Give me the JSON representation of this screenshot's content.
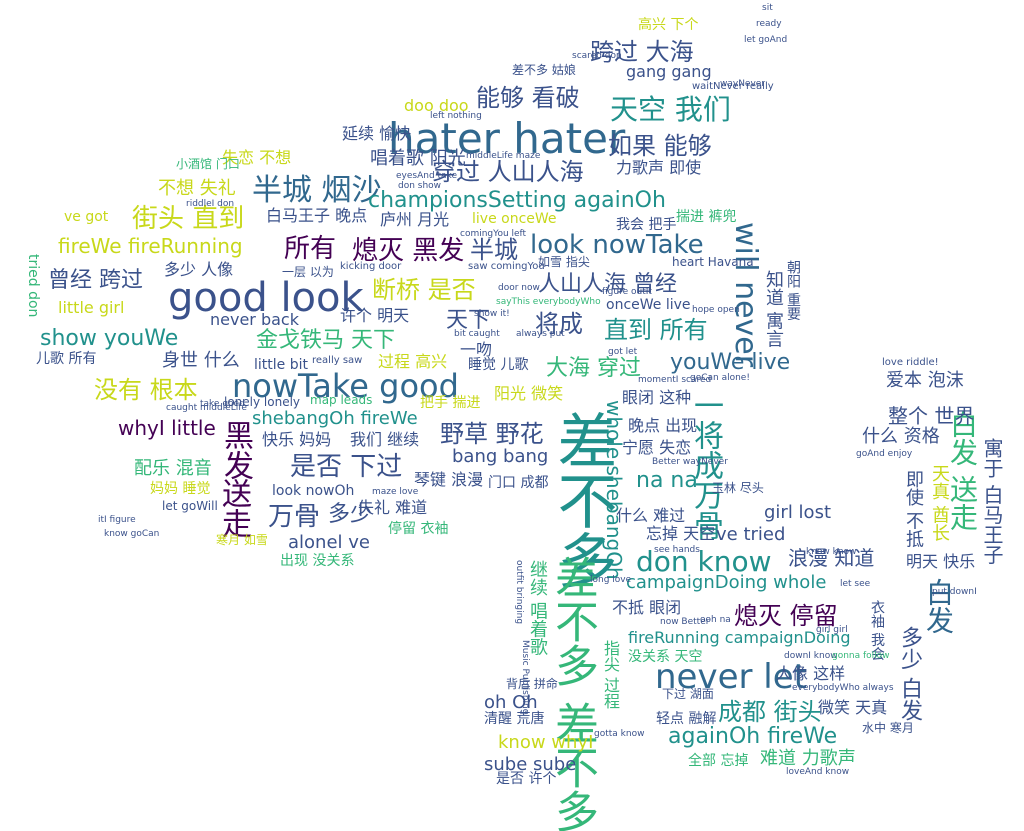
{
  "palette": {
    "dark_purple": "#440154",
    "indigo": "#3b528b",
    "blue": "#31688e",
    "teal": "#21918c",
    "green": "#35b779",
    "lime": "#90d743",
    "yellow": "#c8d81a",
    "navy": "#2c3e7f"
  },
  "words": [
    {
      "text": "差不多",
      "color": "#21918c"
    },
    {
      "text": "hater hater",
      "color": "#31688e"
    },
    {
      "text": "good look",
      "color": "#3b528b"
    },
    {
      "text": "nowTake good",
      "color": "#31688e"
    },
    {
      "text": "never let",
      "color": "#31688e"
    },
    {
      "text": "don know",
      "color": "#21918c"
    },
    {
      "text": "差不多 差不多",
      "color": "#35b779"
    },
    {
      "text": "天空 我们",
      "color": "#21918c"
    },
    {
      "text": "半城 烟沙",
      "color": "#31688e"
    },
    {
      "text": "look nowTake",
      "color": "#31688e"
    },
    {
      "text": "穿过 人山人海",
      "color": "#3b528b"
    },
    {
      "text": "championsSetting againOh",
      "color": "#21918c"
    },
    {
      "text": "熄灭 黑发",
      "color": "#440154"
    },
    {
      "text": "所有",
      "color": "#440154"
    },
    {
      "text": "街头 直到",
      "color": "#c8d81a"
    },
    {
      "text": "如果 能够",
      "color": "#3b528b"
    },
    {
      "text": "能够 看破",
      "color": "#3b528b"
    },
    {
      "text": "跨过 大海",
      "color": "#3b528b"
    },
    {
      "text": "gang gang",
      "color": "#3b528b"
    },
    {
      "text": "fireWe fireRunning",
      "color": "#c8d81a"
    },
    {
      "text": "曾经 跨过",
      "color": "#3b528b"
    },
    {
      "text": "断桥 是否",
      "color": "#c8d81a"
    },
    {
      "text": "半城",
      "color": "#3b528b"
    },
    {
      "text": "人山人海 曾经",
      "color": "#3b528b"
    },
    {
      "text": "show youWe",
      "color": "#21918c"
    },
    {
      "text": "金戈铁马 天下",
      "color": "#35b779"
    },
    {
      "text": "没有 根本",
      "color": "#c8d81a"
    },
    {
      "text": "将成",
      "color": "#3b528b"
    },
    {
      "text": "天下",
      "color": "#3b528b"
    },
    {
      "text": "直到 所有",
      "color": "#21918c"
    },
    {
      "text": "youWe live",
      "color": "#31688e"
    },
    {
      "text": "will never",
      "color": "#31688e"
    },
    {
      "text": "是否 下过",
      "color": "#3b528b"
    },
    {
      "text": "万骨",
      "color": "#3b528b"
    },
    {
      "text": "多少",
      "color": "#3b528b"
    },
    {
      "text": "whyI little",
      "color": "#440154"
    },
    {
      "text": "shebangOh fireWe",
      "color": "#21918c"
    },
    {
      "text": "野草 野花",
      "color": "#3b528b"
    },
    {
      "text": "bang bang",
      "color": "#3b528b"
    },
    {
      "text": "黑发",
      "color": "#440154"
    },
    {
      "text": "送走",
      "color": "#440154"
    },
    {
      "text": "大海 穿过",
      "color": "#35b779"
    },
    {
      "text": "一将成万骨",
      "color": "#21918c"
    },
    {
      "text": "na na",
      "color": "#21918c"
    },
    {
      "text": "熄灭 停留",
      "color": "#440154"
    },
    {
      "text": "白发 送走",
      "color": "#35b779"
    },
    {
      "text": "白发",
      "color": "#31688e"
    },
    {
      "text": "成都 街头",
      "color": "#21918c"
    },
    {
      "text": "againOh fireWe",
      "color": "#21918c"
    },
    {
      "text": "campaignDoing whole",
      "color": "#21918c"
    },
    {
      "text": "fireRunning campaignDoing",
      "color": "#21918c"
    },
    {
      "text": "浪漫 知道",
      "color": "#3b528b"
    },
    {
      "text": "whole shebangOh",
      "color": "#21918c"
    },
    {
      "text": "ve tried",
      "color": "#3b528b"
    },
    {
      "text": "girl lost",
      "color": "#3b528b"
    },
    {
      "text": "alonel ve",
      "color": "#3b528b"
    },
    {
      "text": "oh Oh",
      "color": "#3b528b"
    },
    {
      "text": "know whyI",
      "color": "#c8d81a"
    },
    {
      "text": "sube sube",
      "color": "#3b528b"
    },
    {
      "text": "多少 白发",
      "color": "#3b528b"
    },
    {
      "text": "寓于 白马王子",
      "color": "#3b528b"
    },
    {
      "text": "整个 世界",
      "color": "#3b528b"
    },
    {
      "text": "爱本 泡沫",
      "color": "#3b528b"
    },
    {
      "text": "什么 资格",
      "color": "#3b528b"
    },
    {
      "text": "明天 快乐",
      "color": "#3b528b"
    },
    {
      "text": "天真 酋长",
      "color": "#c8d81a"
    },
    {
      "text": "即使 不抵",
      "color": "#3b528b"
    },
    {
      "text": "唱着歌 阳光",
      "color": "#3b528b"
    },
    {
      "text": "延续 愉快",
      "color": "#3b528b"
    },
    {
      "text": "失恋 不想",
      "color": "#c8d81a"
    },
    {
      "text": "不想 失礼",
      "color": "#c8d81a"
    },
    {
      "text": "白马王子 晚点",
      "color": "#3b528b"
    },
    {
      "text": "庐州 月光",
      "color": "#3b528b"
    },
    {
      "text": "多少 人像",
      "color": "#3b528b"
    },
    {
      "text": "never back",
      "color": "#3b528b"
    },
    {
      "text": "许个 明天",
      "color": "#3b528b"
    },
    {
      "text": "little girl",
      "color": "#c8d81a"
    },
    {
      "text": "儿歌 所有",
      "color": "#3b528b"
    },
    {
      "text": "身世 什么",
      "color": "#3b528b"
    },
    {
      "text": "快乐 妈妈",
      "color": "#3b528b"
    },
    {
      "text": "我们 继续",
      "color": "#3b528b"
    },
    {
      "text": "配乐 混音",
      "color": "#35b779"
    },
    {
      "text": "妈妈 睡觉",
      "color": "#c8d81a"
    },
    {
      "text": "look nowOh",
      "color": "#3b528b"
    },
    {
      "text": "失礼 难道",
      "color": "#3b528b"
    },
    {
      "text": "停留 衣袖",
      "color": "#35b779"
    },
    {
      "text": "出现 没关系",
      "color": "#35b779"
    },
    {
      "text": "琴键 浪漫",
      "color": "#3b528b"
    },
    {
      "text": "宁愿 失恋",
      "color": "#3b528b"
    },
    {
      "text": "晚点 出现",
      "color": "#3b528b"
    },
    {
      "text": "眼闭 这种",
      "color": "#3b528b"
    },
    {
      "text": "阳光 微笑",
      "color": "#c8d81a"
    },
    {
      "text": "睡觉 儿歌",
      "color": "#3b528b"
    },
    {
      "text": "过程 高兴",
      "color": "#c8d81a"
    },
    {
      "text": "把手 揣进",
      "color": "#c8d81a"
    },
    {
      "text": "一吻",
      "color": "#3b528b"
    },
    {
      "text": "onceWe live",
      "color": "#3b528b"
    },
    {
      "text": "什么 难过",
      "color": "#3b528b"
    },
    {
      "text": "忘掉 天空",
      "color": "#3b528b"
    },
    {
      "text": "不抵 眼闭",
      "color": "#3b528b"
    },
    {
      "text": "没关系 天空",
      "color": "#35b779"
    },
    {
      "text": "人像 这样",
      "color": "#3b528b"
    },
    {
      "text": "微笑 天真",
      "color": "#3b528b"
    },
    {
      "text": "难道 力歌声",
      "color": "#35b779"
    },
    {
      "text": "轻点 融解",
      "color": "#3b528b"
    },
    {
      "text": "清醒 荒唐",
      "color": "#3b528b"
    },
    {
      "text": "是否 许个",
      "color": "#3b528b"
    },
    {
      "text": "全部 忘掉",
      "color": "#35b779"
    },
    {
      "text": "下过 湖面",
      "color": "#3b528b"
    },
    {
      "text": "衣袖 我会",
      "color": "#3b528b"
    },
    {
      "text": "水中 寒月",
      "color": "#3b528b"
    },
    {
      "text": "doo doo",
      "color": "#c8d81a"
    },
    {
      "text": "差不多 姑娘",
      "color": "#3b528b"
    },
    {
      "text": "力歌声 即使",
      "color": "#3b528b"
    },
    {
      "text": "小酒馆 门口",
      "color": "#35b779"
    },
    {
      "text": "live onceWe",
      "color": "#c8d81a"
    },
    {
      "text": "我会 把手",
      "color": "#3b528b"
    },
    {
      "text": "ve got",
      "color": "#c8d81a"
    },
    {
      "text": "tried don",
      "color": "#35b779"
    },
    {
      "text": "let goWill",
      "color": "#3b528b"
    },
    {
      "text": "背后 拼命",
      "color": "#3b528b"
    },
    {
      "text": "寒月 如雪",
      "color": "#c8d81a"
    },
    {
      "text": "继续 唱着歌",
      "color": "#35b779"
    },
    {
      "text": "指尖 过程",
      "color": "#35b779"
    },
    {
      "text": "玉林 尽头",
      "color": "#3b528b"
    },
    {
      "text": "门口 成都",
      "color": "#3b528b"
    },
    {
      "text": "如雪 指尖",
      "color": "#3b528b"
    },
    {
      "text": "heart Havana",
      "color": "#3b528b"
    },
    {
      "text": "揣进 裤兜",
      "color": "#35b779"
    },
    {
      "text": "知道 寓言",
      "color": "#3b528b"
    },
    {
      "text": "朝阳 重要",
      "color": "#3b528b"
    },
    {
      "text": "高兴 下个",
      "color": "#c8d81a"
    },
    {
      "text": "一层 以为",
      "color": "#3b528b"
    },
    {
      "text": "kicking door",
      "color": "#3b528b"
    },
    {
      "text": "saw comingYou",
      "color": "#3b528b"
    },
    {
      "text": "map leads",
      "color": "#35b779"
    },
    {
      "text": "lonely lonely",
      "color": "#3b528b"
    },
    {
      "text": "little bit",
      "color": "#3b528b"
    },
    {
      "text": "caught middleLife",
      "color": "#3b528b"
    },
    {
      "text": "really saw",
      "color": "#3b528b"
    },
    {
      "text": "see hands",
      "color": "#3b528b"
    },
    {
      "text": "Better wayNever",
      "color": "#3b528b"
    },
    {
      "text": "goCan alone!",
      "color": "#3b528b"
    },
    {
      "text": "love riddle!",
      "color": "#3b528b"
    },
    {
      "text": "goAnd enjoy",
      "color": "#3b528b"
    },
    {
      "text": "everybodyWho always",
      "color": "#3b528b"
    },
    {
      "text": "loveAnd know",
      "color": "#3b528b"
    },
    {
      "text": "downI know",
      "color": "#3b528b"
    },
    {
      "text": "put downI",
      "color": "#3b528b"
    },
    {
      "text": "gonna follow",
      "color": "#35b779"
    },
    {
      "text": "gotta know",
      "color": "#3b528b"
    },
    {
      "text": "waitNever really",
      "color": "#3b528b"
    },
    {
      "text": "let goAnd",
      "color": "#3b528b"
    },
    {
      "text": "scared don",
      "color": "#3b528b"
    },
    {
      "text": "eyesAnd take",
      "color": "#3b528b"
    },
    {
      "text": "left nothing",
      "color": "#3b528b"
    },
    {
      "text": "always put",
      "color": "#3b528b"
    },
    {
      "text": "sayThis everybodyWho",
      "color": "#35b779"
    },
    {
      "text": "hope open",
      "color": "#3b528b"
    },
    {
      "text": "door now",
      "color": "#3b528b"
    },
    {
      "text": "figure outIt",
      "color": "#3b528b"
    },
    {
      "text": "momentI scared",
      "color": "#3b528b"
    },
    {
      "text": "got let",
      "color": "#3b528b"
    },
    {
      "text": "comingYou left",
      "color": "#3b528b"
    },
    {
      "text": "middleLife maze",
      "color": "#3b528b"
    },
    {
      "text": "don show",
      "color": "#3b528b"
    },
    {
      "text": "riddleI don",
      "color": "#3b528b"
    },
    {
      "text": "maze love",
      "color": "#3b528b"
    },
    {
      "text": "take good",
      "color": "#3b528b"
    },
    {
      "text": "itI figure",
      "color": "#3b528b"
    },
    {
      "text": "know goCan",
      "color": "#3b528b"
    },
    {
      "text": "long love",
      "color": "#3b528b"
    },
    {
      "text": "girl girl",
      "color": "#3b528b"
    },
    {
      "text": "now Better",
      "color": "#3b528b"
    },
    {
      "text": "bit caught",
      "color": "#3b528b"
    },
    {
      "text": "show it!",
      "color": "#3b528b"
    },
    {
      "text": "know know",
      "color": "#3b528b"
    },
    {
      "text": "let see",
      "color": "#3b528b"
    },
    {
      "text": "ooh na",
      "color": "#3b528b"
    },
    {
      "text": "outfit bringing",
      "color": "#3b528b"
    },
    {
      "text": "Music Publishing",
      "color": "#3b528b"
    },
    {
      "text": "wayNever",
      "color": "#3b528b"
    },
    {
      "text": "ready",
      "color": "#3b528b"
    },
    {
      "text": "sit",
      "color": "#3b528b"
    }
  ]
}
